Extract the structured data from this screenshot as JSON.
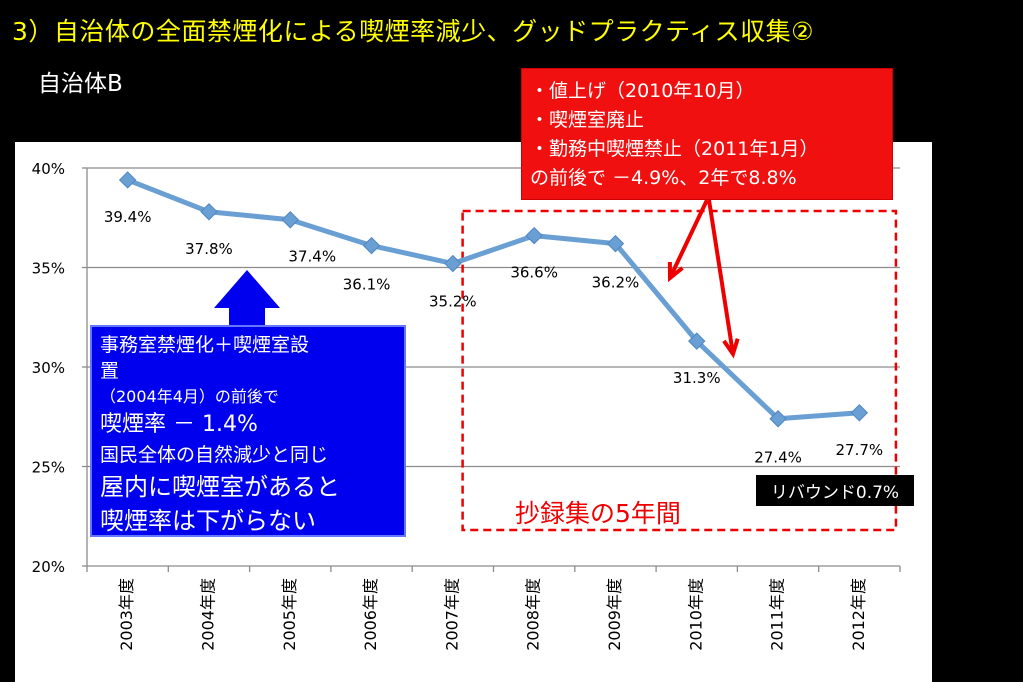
{
  "title": "3）自治体の全面禁煙化による喫煙率減少、グッドプラクティス収集②",
  "subtitle": "自治体B",
  "colors": {
    "title": "#ffff00",
    "line": "#6a9fd4",
    "red_callout": "#f01010",
    "blue_callout": "#0000ee",
    "period_box": "#ee0000",
    "arrows": "#ee0000"
  },
  "chart_data": {
    "type": "line",
    "categories": [
      "2003年度",
      "2004年度",
      "2005年度",
      "2006年度",
      "2007年度",
      "2008年度",
      "2009年度",
      "2010年度",
      "2011年度",
      "2012年度"
    ],
    "values": [
      39.4,
      37.8,
      37.4,
      36.1,
      35.2,
      36.6,
      36.2,
      31.3,
      27.4,
      27.7
    ],
    "data_labels": [
      "39.4%",
      "37.8%",
      "37.4%",
      "36.1%",
      "35.2%",
      "36.6%",
      "36.2%",
      "31.3%",
      "27.4%",
      "27.7%"
    ],
    "y_ticks": [
      40,
      35,
      30,
      25,
      20
    ],
    "y_tick_labels": [
      "40%",
      "35%",
      "30%",
      "25%",
      "20%"
    ],
    "ylim": [
      20,
      40
    ],
    "grid": true,
    "legend": "none",
    "marker": "diamond"
  },
  "callouts": {
    "red": {
      "lines": [
        "・値上げ（2010年10月）",
        "・喫煙室廃止",
        "・勤務中喫煙禁止（2011年1月）",
        "の前後で －4.9%、2年で8.8%"
      ]
    },
    "blue": {
      "lines": [
        "事務室禁煙化＋喫煙室設",
        "置",
        "（2004年4月）の前後で",
        "喫煙率 － 1.4%",
        "国民全体の自然減少と同じ",
        "屋内に喫煙室があると",
        "喫煙率は下がらない"
      ]
    },
    "rebound": "リバウンド0.7%",
    "period": "抄録集の5年間"
  }
}
